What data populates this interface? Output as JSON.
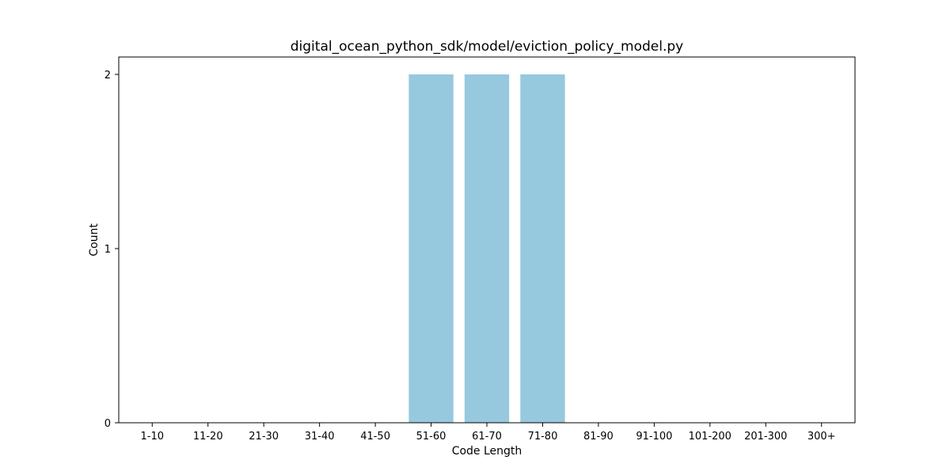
{
  "chart_data": {
    "type": "bar",
    "title": "digital_ocean_python_sdk/model/eviction_policy_model.py",
    "xlabel": "Code Length",
    "ylabel": "Count",
    "categories": [
      "1-10",
      "11-20",
      "21-30",
      "31-40",
      "41-50",
      "51-60",
      "61-70",
      "71-80",
      "81-90",
      "91-100",
      "101-200",
      "201-300",
      "300+"
    ],
    "values": [
      0,
      0,
      0,
      0,
      0,
      2,
      2,
      2,
      0,
      0,
      0,
      0,
      0
    ],
    "yticks": [
      "0",
      "1",
      "2"
    ],
    "ylim": [
      0,
      2.1
    ],
    "grid": false,
    "legend": "none",
    "bar_color": "#96c9de"
  }
}
